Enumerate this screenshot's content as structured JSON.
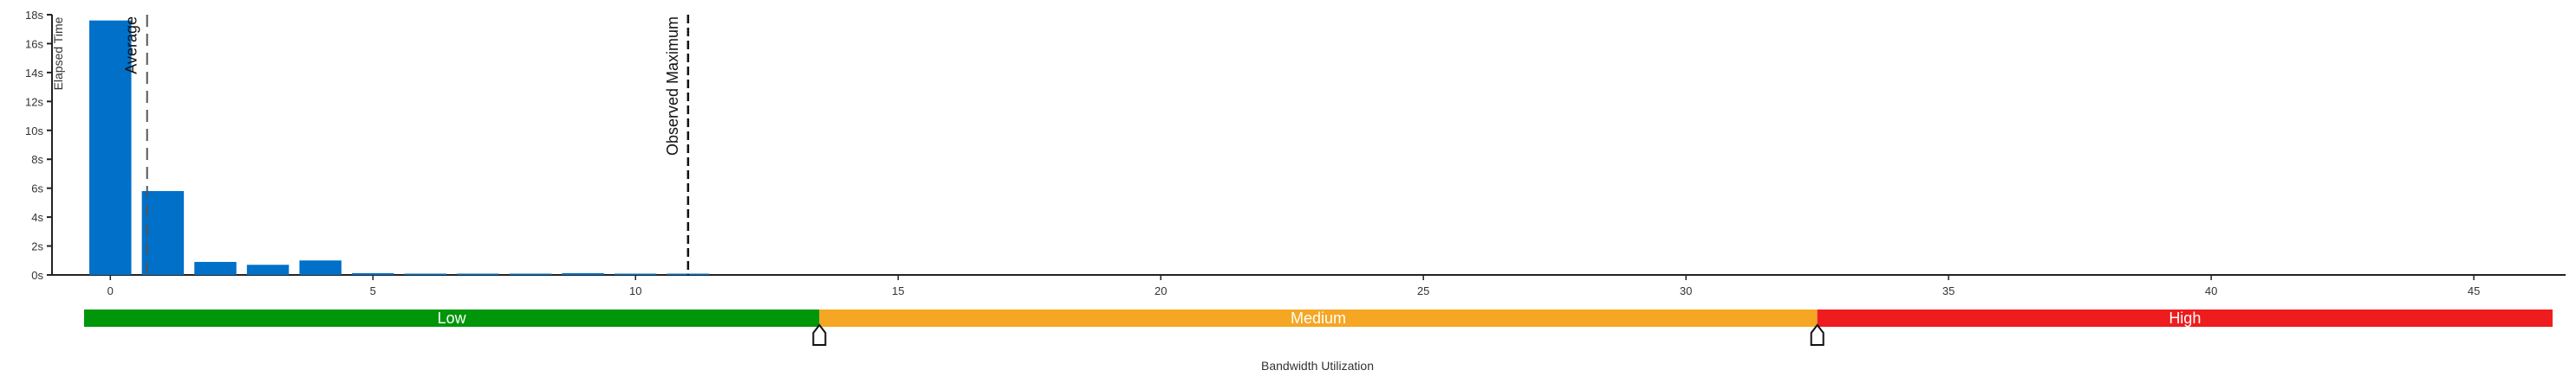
{
  "chart_data": {
    "type": "bar",
    "ylabel": "Elapsed Time",
    "xlabel": "Bandwidth Utilization",
    "x_ticks": [
      0,
      5,
      10,
      15,
      20,
      25,
      30,
      35,
      40,
      45
    ],
    "y_ticks": [
      "0s",
      "2s",
      "4s",
      "6s",
      "8s",
      "10s",
      "12s",
      "14s",
      "16s",
      "18s"
    ],
    "xlim": [
      -0.5,
      46.5
    ],
    "ylim": [
      0,
      18
    ],
    "bar_color": "#0070c8",
    "bars": [
      {
        "x": 0,
        "value": 17.6
      },
      {
        "x": 1,
        "value": 5.8
      },
      {
        "x": 2,
        "value": 0.9
      },
      {
        "x": 3,
        "value": 0.7
      },
      {
        "x": 4,
        "value": 1.0
      },
      {
        "x": 5,
        "value": 0.12
      },
      {
        "x": 6,
        "value": 0.08
      },
      {
        "x": 7,
        "value": 0.06
      },
      {
        "x": 8,
        "value": 0.06
      },
      {
        "x": 9,
        "value": 0.12
      },
      {
        "x": 10,
        "value": 0.08
      },
      {
        "x": 11,
        "value": 0.05
      }
    ],
    "reference_lines": [
      {
        "label": "Average",
        "x": 0.7
      },
      {
        "label": "Observed Maximum",
        "x": 11.0
      }
    ],
    "bands": [
      {
        "label": "Low",
        "from": -0.5,
        "to": 13.5,
        "color": "#00960a"
      },
      {
        "label": "Medium",
        "from": 13.5,
        "to": 32.5,
        "color": "#f5a623"
      },
      {
        "label": "High",
        "from": 32.5,
        "to": 46.5,
        "color": "#ee1c1c"
      }
    ],
    "thresholds": [
      13.5,
      32.5
    ],
    "grid": false
  }
}
